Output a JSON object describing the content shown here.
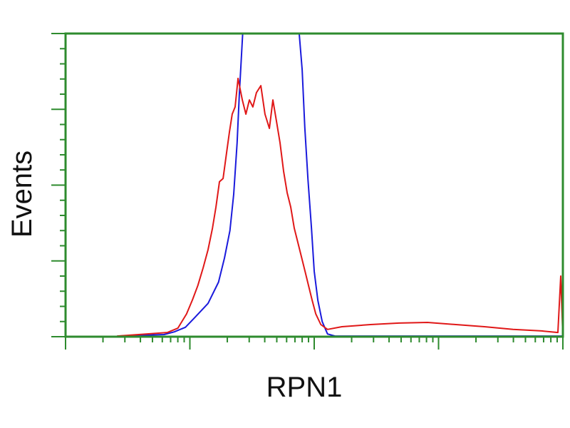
{
  "chart_data": {
    "type": "line",
    "title": "",
    "xlabel": "RPN1",
    "ylabel": "Events",
    "x_scale": "log",
    "xlim": [
      1,
      10000
    ],
    "ylim": [
      0,
      100
    ],
    "grid": false,
    "frame_color": "#2e8b2e",
    "series": [
      {
        "color": "#1a1adc",
        "x": [
          2.6,
          6.2,
          7.5,
          9.2,
          11,
          14,
          17,
          19,
          21,
          22.5,
          24,
          25,
          27,
          74,
          80,
          84,
          89,
          95,
          100,
          107,
          116,
          128,
          147,
          10000
        ],
        "y": [
          0.2,
          0.7,
          1.6,
          3.1,
          6.4,
          11,
          18,
          26,
          35,
          47,
          64,
          80,
          105,
          105,
          88,
          69,
          52,
          36,
          21.6,
          12,
          5,
          0.9,
          0.2,
          0.2
        ]
      },
      {
        "color": "#e01818",
        "x": [
          2.6,
          6.6,
          8.0,
          9.4,
          10.5,
          11.6,
          12.8,
          14,
          15.2,
          16.2,
          17.3,
          18.5,
          19.7,
          20.8,
          21.9,
          23.1,
          24.4,
          25.4,
          26.4,
          28.2,
          30.1,
          32.1,
          34.3,
          37.2,
          40.2,
          43.6,
          46.5,
          49.7,
          53.1,
          56.7,
          60.6,
          64.7,
          69.1,
          73.8,
          78.9,
          84.3,
          90,
          96,
          103,
          113,
          128,
          167,
          284,
          481,
          815,
          1380,
          2340,
          3970,
          6730,
          9120,
          9610,
          10000
        ],
        "y": [
          0.2,
          1.4,
          2.8,
          7.5,
          12.2,
          16.9,
          22.8,
          28.7,
          35.8,
          42.8,
          51.1,
          52.2,
          60.5,
          67.5,
          73.4,
          75.8,
          85.2,
          81.6,
          78.1,
          73.4,
          78.1,
          75.8,
          80.5,
          82.8,
          73.4,
          68.7,
          78.1,
          71.1,
          64,
          54.6,
          47.5,
          42.8,
          35.8,
          31.1,
          26.4,
          21.6,
          16.9,
          12.2,
          7.5,
          4,
          2.4,
          3.3,
          4,
          4.5,
          4.7,
          4,
          3.3,
          2.4,
          1.9,
          1.4,
          20,
          0
        ]
      }
    ]
  }
}
